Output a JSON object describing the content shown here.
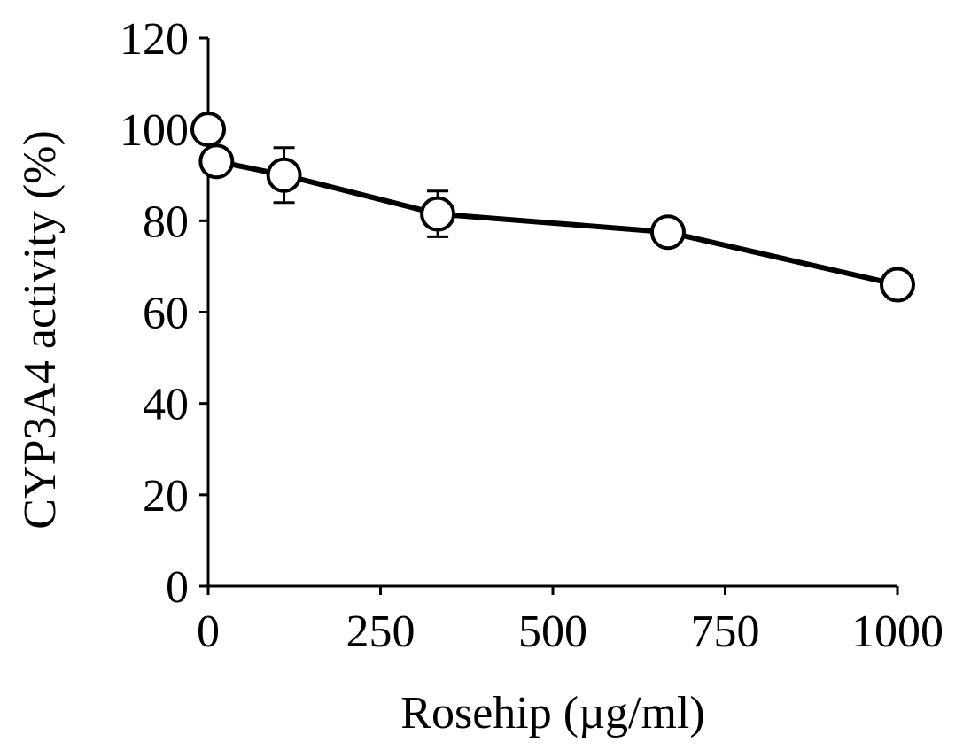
{
  "chart_data": {
    "type": "line",
    "title": "",
    "xlabel": "Rosehip (µg/ml)",
    "ylabel": "CYP3A4 activity (%)",
    "xlim": [
      0,
      1000
    ],
    "ylim": [
      0,
      120
    ],
    "x_ticks": [
      "0",
      "250",
      "500",
      "750",
      "1000"
    ],
    "x_tick_values": [
      0,
      250,
      500,
      750,
      1000
    ],
    "y_ticks": [
      "0",
      "20",
      "40",
      "60",
      "80",
      "100",
      "120"
    ],
    "y_tick_values": [
      0,
      20,
      40,
      60,
      80,
      100,
      120
    ],
    "grid": false,
    "legend": "none",
    "series": [
      {
        "x": [
          0,
          12,
          110,
          333,
          667,
          1000
        ],
        "y": [
          100,
          93,
          90,
          81.5,
          77.5,
          66
        ],
        "error": [
          0,
          0,
          6,
          5,
          0,
          3
        ],
        "connected_from_index": 1,
        "marker": "open-circle",
        "color": "#000000"
      }
    ]
  }
}
